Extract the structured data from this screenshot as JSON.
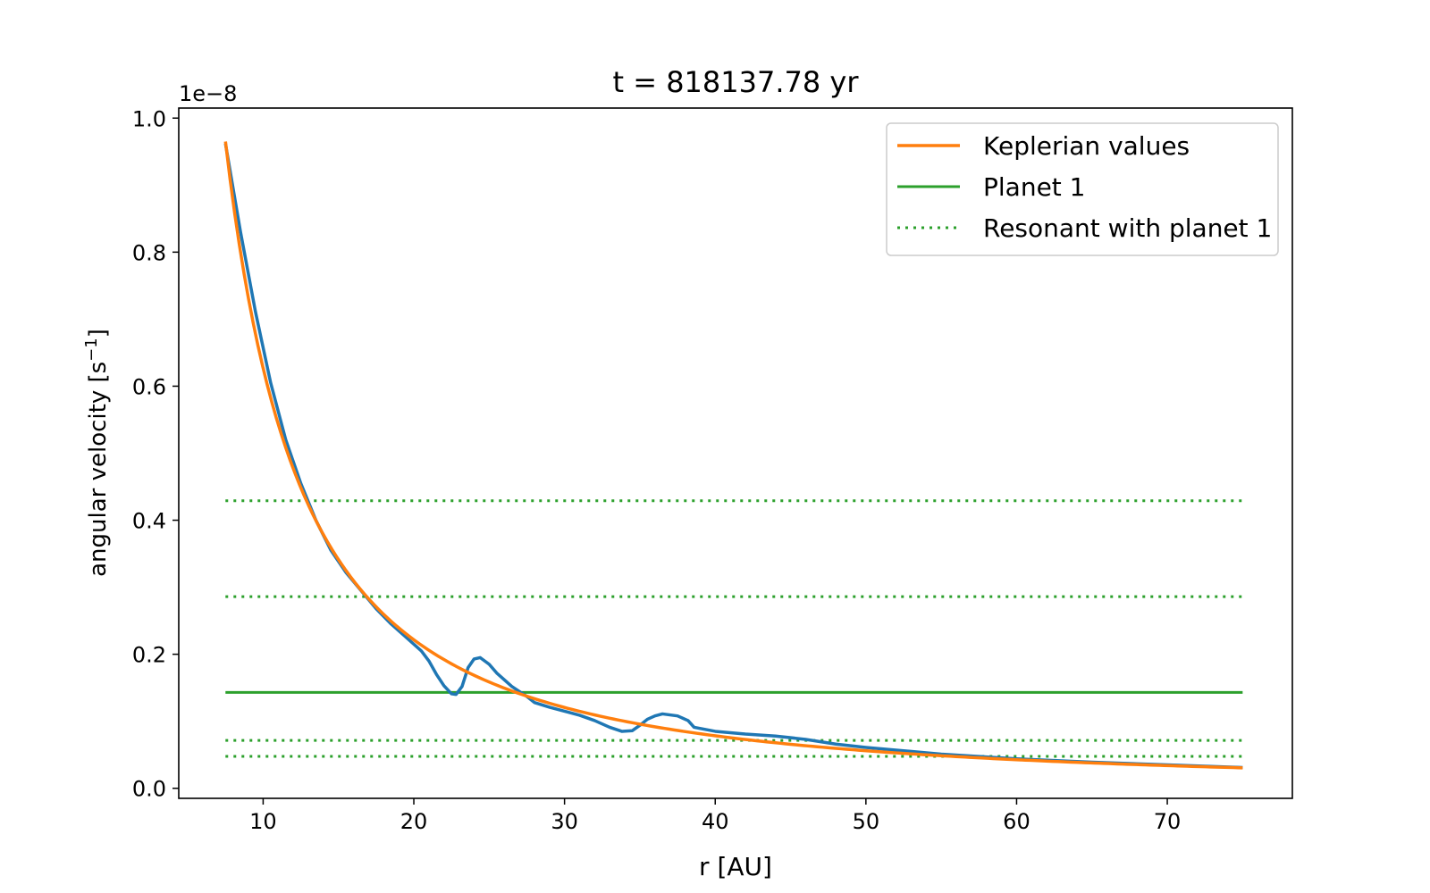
{
  "chart_data": {
    "type": "line",
    "title": "t = 818137.78 yr",
    "xlabel": "r [AU]",
    "ylabel_main": "angular velocity [s",
    "ylabel_sup": "−1",
    "ylabel_tail": "]",
    "y_offset_text": "1e−8",
    "xlim": [
      4.4,
      78.3
    ],
    "ylim": [
      -0.015,
      1.015
    ],
    "x_ticks": [
      10,
      20,
      30,
      40,
      50,
      60,
      70
    ],
    "x_tick_labels": [
      "10",
      "20",
      "30",
      "40",
      "50",
      "60",
      "70"
    ],
    "y_ticks": [
      0.0,
      0.2,
      0.4,
      0.6,
      0.8,
      1.0
    ],
    "y_tick_labels": [
      "0.0",
      "0.2",
      "0.4",
      "0.6",
      "0.8",
      "1.0"
    ],
    "legend_position": "top-right",
    "series": [
      {
        "key": "simulated",
        "color": "#1f77b4",
        "style": "solid",
        "points": [
          [
            7.5,
            0.962
          ],
          [
            8.5,
            0.83
          ],
          [
            9.5,
            0.71
          ],
          [
            10.5,
            0.605
          ],
          [
            11.5,
            0.52
          ],
          [
            12.5,
            0.455
          ],
          [
            13.5,
            0.4
          ],
          [
            14.5,
            0.355
          ],
          [
            15.5,
            0.322
          ],
          [
            16.5,
            0.295
          ],
          [
            17.5,
            0.268
          ],
          [
            18.5,
            0.245
          ],
          [
            19.5,
            0.225
          ],
          [
            20.5,
            0.205
          ],
          [
            21.0,
            0.19
          ],
          [
            21.5,
            0.17
          ],
          [
            22.0,
            0.153
          ],
          [
            22.5,
            0.141
          ],
          [
            22.8,
            0.14
          ],
          [
            23.2,
            0.152
          ],
          [
            23.6,
            0.18
          ],
          [
            24.0,
            0.193
          ],
          [
            24.4,
            0.195
          ],
          [
            25.0,
            0.185
          ],
          [
            25.5,
            0.172
          ],
          [
            26.5,
            0.152
          ],
          [
            27.5,
            0.137
          ],
          [
            28.0,
            0.128
          ],
          [
            29.0,
            0.121
          ],
          [
            30.0,
            0.115
          ],
          [
            31.0,
            0.109
          ],
          [
            32.0,
            0.101
          ],
          [
            33.0,
            0.091
          ],
          [
            33.8,
            0.085
          ],
          [
            34.5,
            0.086
          ],
          [
            35.0,
            0.094
          ],
          [
            35.5,
            0.103
          ],
          [
            36.0,
            0.108
          ],
          [
            36.5,
            0.111
          ],
          [
            37.5,
            0.108
          ],
          [
            38.2,
            0.101
          ],
          [
            38.6,
            0.091
          ],
          [
            40.0,
            0.085
          ],
          [
            42.0,
            0.081
          ],
          [
            44.0,
            0.078
          ],
          [
            46.0,
            0.073
          ],
          [
            48.0,
            0.066
          ],
          [
            50.0,
            0.061
          ],
          [
            52.0,
            0.057
          ],
          [
            55.0,
            0.051
          ],
          [
            60.0,
            0.044
          ],
          [
            65.0,
            0.039
          ],
          [
            70.0,
            0.035
          ],
          [
            75.0,
            0.031
          ]
        ]
      },
      {
        "key": "keplerian",
        "name": "Keplerian values",
        "color": "#ff7f0e",
        "style": "solid",
        "model": "power",
        "A": 0.965,
        "r0": 7.5,
        "exponent": -1.5,
        "x_range": [
          7.5,
          75.0
        ]
      },
      {
        "key": "planet",
        "name": "Planet 1",
        "color": "#2ca02c",
        "style": "solid",
        "y": 0.143,
        "x_range": [
          7.5,
          75.0
        ]
      },
      {
        "key": "resonant",
        "name": "Resonant with planet 1",
        "color": "#2ca02c",
        "style": "dotted",
        "y_values": [
          0.429,
          0.286,
          0.0715,
          0.0477
        ],
        "x_range": [
          7.5,
          75.0
        ]
      }
    ]
  }
}
